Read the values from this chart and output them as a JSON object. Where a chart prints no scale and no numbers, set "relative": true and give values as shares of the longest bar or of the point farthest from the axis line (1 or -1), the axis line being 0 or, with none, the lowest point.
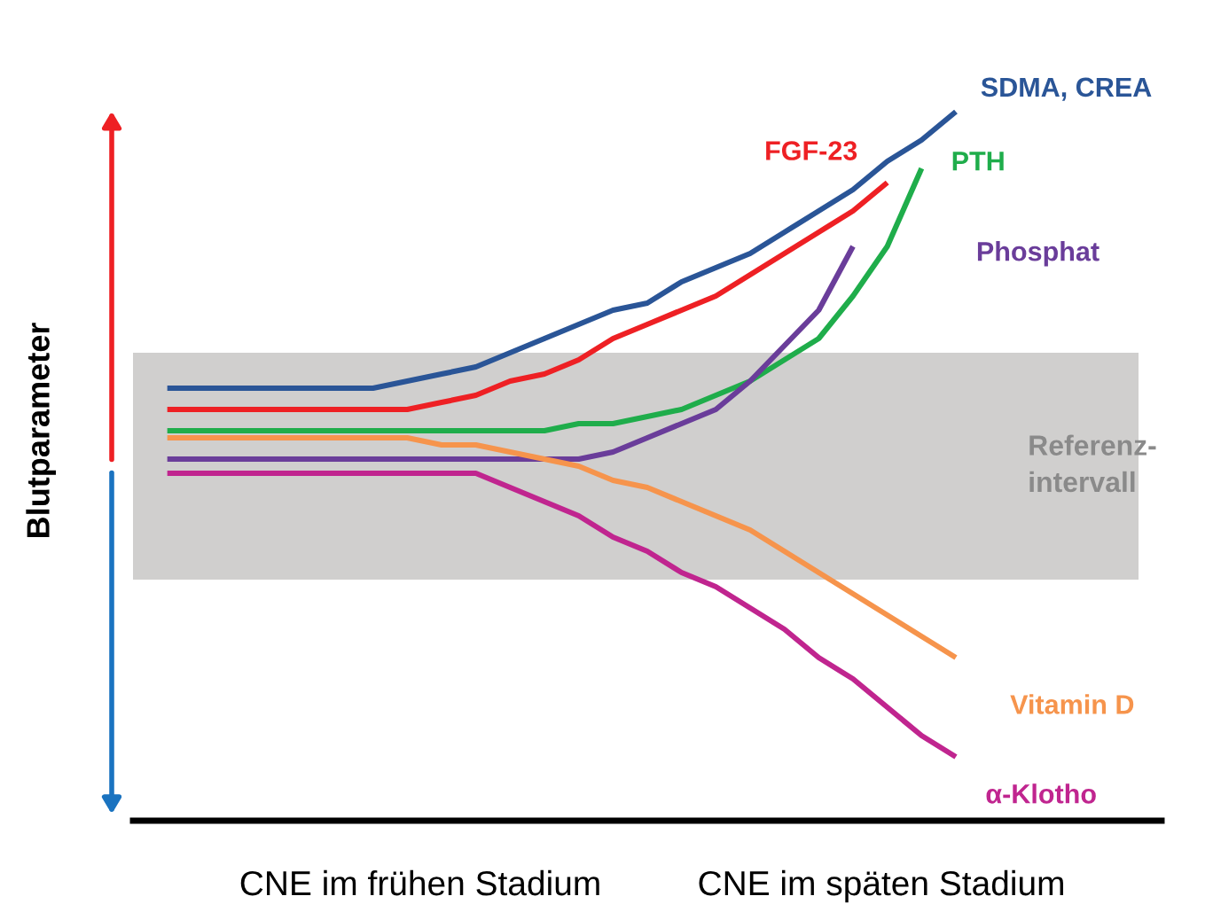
{
  "chart_data": {
    "type": "line",
    "relative": true,
    "ylabel": "Blutparameter",
    "categories": [
      null,
      null,
      null,
      null,
      null,
      null,
      null,
      null,
      null,
      null,
      null,
      null,
      null,
      null,
      null,
      null,
      null,
      null,
      null,
      null,
      null,
      null,
      null,
      null,
      null
    ],
    "series": [
      {
        "name": "SDMA, CREA",
        "color": "#2a5597",
        "values": [
          0.61,
          0.61,
          0.61,
          0.61,
          0.61,
          0.61,
          0.61,
          0.62,
          0.63,
          0.64,
          0.66,
          0.68,
          0.7,
          0.72,
          0.73,
          0.76,
          0.78,
          0.8,
          0.83,
          0.86,
          0.89,
          0.93,
          0.96,
          1,
          null
        ]
      },
      {
        "name": "FGF-23",
        "color": "#ee2024",
        "values": [
          0.58,
          0.58,
          0.58,
          0.58,
          0.58,
          0.58,
          0.58,
          0.58,
          0.59,
          0.6,
          0.62,
          0.63,
          0.65,
          0.68,
          0.7,
          0.72,
          0.74,
          0.77,
          0.8,
          0.83,
          0.86,
          0.9,
          null,
          null,
          null
        ]
      },
      {
        "name": "PTH",
        "color": "#1fad4b",
        "values": [
          0.55,
          0.55,
          0.55,
          0.55,
          0.55,
          0.55,
          0.55,
          0.55,
          0.55,
          0.55,
          0.55,
          0.55,
          0.56,
          0.56,
          0.57,
          0.58,
          0.6,
          0.62,
          0.65,
          0.68,
          0.74,
          0.81,
          0.92,
          null,
          null
        ]
      },
      {
        "name": "Phosphat",
        "color": "#6a3d9a",
        "values": [
          0.51,
          0.51,
          0.51,
          0.51,
          0.51,
          0.51,
          0.51,
          0.51,
          0.51,
          0.51,
          0.51,
          0.51,
          0.51,
          0.52,
          0.54,
          0.56,
          0.58,
          0.62,
          0.67,
          0.72,
          0.81,
          null,
          null,
          null,
          null
        ]
      },
      {
        "name": "Vitamin D",
        "color": "#f6944c",
        "values": [
          0.54,
          0.54,
          0.54,
          0.54,
          0.54,
          0.54,
          0.54,
          0.54,
          0.53,
          0.53,
          0.52,
          0.51,
          0.5,
          0.48,
          0.47,
          0.45,
          0.43,
          0.41,
          0.38,
          0.35,
          0.32,
          0.29,
          0.26,
          0.23,
          null
        ]
      },
      {
        "name": "α-Klotho",
        "color": "#c0258f",
        "values": [
          0.49,
          0.49,
          0.49,
          0.49,
          0.49,
          0.49,
          0.49,
          0.49,
          0.49,
          0.49,
          0.47,
          0.45,
          0.43,
          0.4,
          0.38,
          0.35,
          0.33,
          0.3,
          0.27,
          0.23,
          0.2,
          0.16,
          0.12,
          0.09,
          null
        ]
      }
    ],
    "bands": [
      {
        "axis": "y",
        "from": 0.34,
        "to": 0.66,
        "label": "Referenz-\nintervall",
        "color": "#d0cfce"
      }
    ],
    "annotations": [
      "CNE im frühen Stadium",
      "CNE im späten Stadium"
    ],
    "grid": false
  }
}
